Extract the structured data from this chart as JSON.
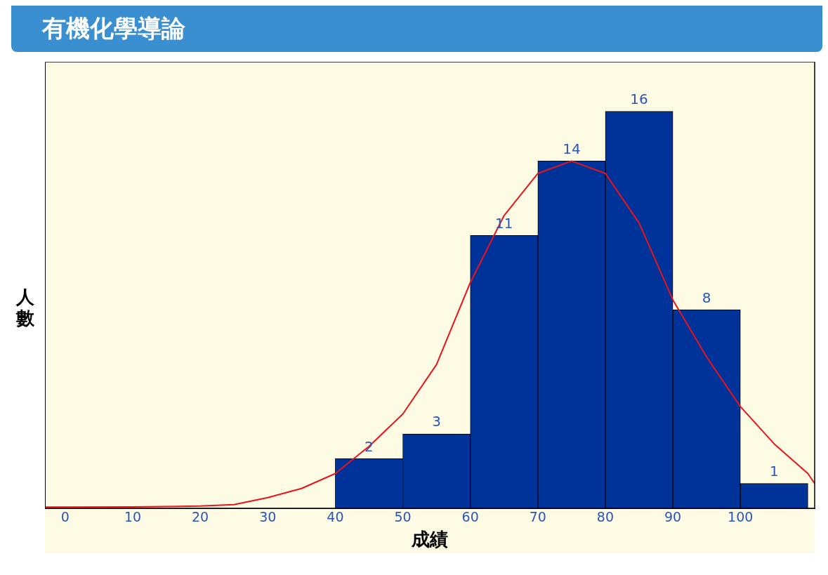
{
  "chart_data": {
    "type": "histogram",
    "title": "有機化學導論",
    "xlabel": "成績",
    "ylabel": "人數",
    "bins": [
      40,
      50,
      60,
      70,
      80,
      90,
      100,
      110
    ],
    "values": [
      2,
      3,
      11,
      14,
      16,
      8,
      1
    ],
    "color": "#003399",
    "value_labels": [
      "2",
      "3",
      "11",
      "14",
      "16",
      "8",
      "1"
    ],
    "series": [
      {
        "type": "line",
        "color": "#e8141c",
        "x": [
          -3,
          0,
          10,
          20,
          25,
          30,
          35,
          40,
          45,
          50,
          55,
          60,
          65,
          70,
          75,
          80,
          85,
          90,
          95,
          100,
          105,
          110,
          111
        ],
        "values": [
          0.05,
          0.05,
          0.06,
          0.09,
          0.15,
          0.43,
          0.8,
          1.4,
          2.5,
          3.8,
          5.8,
          9.1,
          11.8,
          13.5,
          14.0,
          13.5,
          11.5,
          8.4,
          6.1,
          4.1,
          2.6,
          1.4,
          1.0
        ]
      }
    ],
    "xlim": [
      -3,
      111
    ],
    "xticks": [
      0,
      10,
      20,
      30,
      40,
      50,
      60,
      70,
      80,
      90,
      100
    ],
    "ylim": [
      0,
      18
    ],
    "tick_labels": "x",
    "grid": false
  }
}
